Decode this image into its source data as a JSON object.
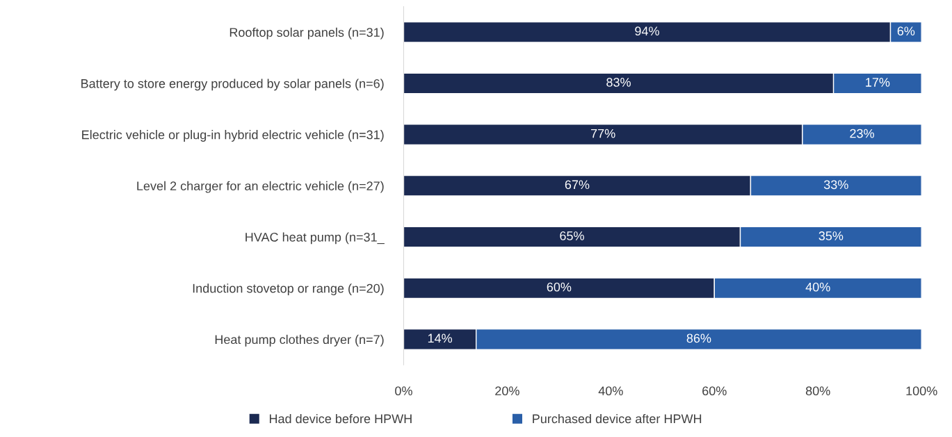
{
  "chart_data": {
    "type": "bar",
    "orientation": "horizontal",
    "stacked": true,
    "categories": [
      "Rooftop solar panels (n=31)",
      "Battery to store energy produced by solar panels (n=6)",
      "Electric vehicle or plug-in hybrid electric vehicle (n=31)",
      "Level 2 charger for an electric vehicle (n=27)",
      "HVAC heat pump (n=31_",
      "Induction stovetop or range (n=20)",
      "Heat pump clothes dryer (n=7)"
    ],
    "series": [
      {
        "name": "Had device before HPWH",
        "color": "#1b2a52",
        "values": [
          94,
          83,
          77,
          67,
          65,
          60,
          14
        ],
        "value_labels": [
          "94%",
          "83%",
          "77%",
          "67%",
          "65%",
          "60%",
          "14%"
        ]
      },
      {
        "name": "Purchased device after HPWH",
        "color": "#2a5fa8",
        "values": [
          6,
          17,
          23,
          33,
          35,
          40,
          86
        ],
        "value_labels": [
          "6%",
          "17%",
          "23%",
          "33%",
          "35%",
          "40%",
          "86%"
        ]
      }
    ],
    "xlim": [
      0,
      100
    ],
    "xticks": [
      {
        "value": 0,
        "label": "0%"
      },
      {
        "value": 20,
        "label": "20%"
      },
      {
        "value": 40,
        "label": "40%"
      },
      {
        "value": 60,
        "label": "60%"
      },
      {
        "value": 80,
        "label": "80%"
      },
      {
        "value": 100,
        "label": "100%"
      }
    ],
    "grid": false,
    "legend": "bottom"
  }
}
